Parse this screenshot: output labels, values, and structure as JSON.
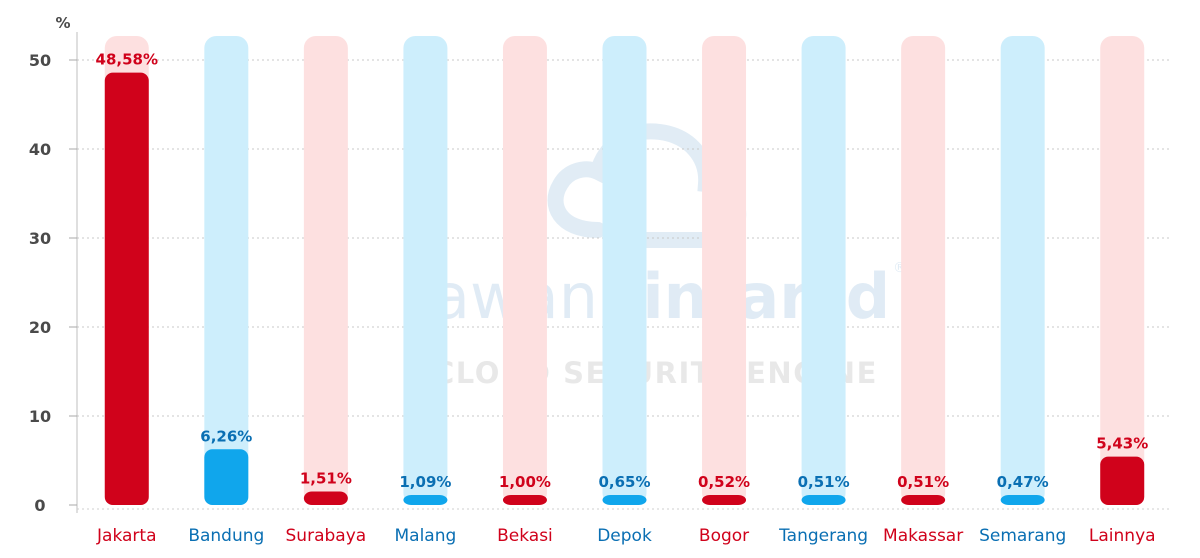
{
  "chart_data": {
    "type": "bar",
    "title": "",
    "xlabel": "",
    "ylabel": "%",
    "ylim": [
      0,
      50
    ],
    "yticks": [
      0,
      10,
      20,
      30,
      40,
      50
    ],
    "grid": true,
    "legend": "none",
    "categories": [
      "Jakarta",
      "Bandung",
      "Surabaya",
      "Malang",
      "Bekasi",
      "Depok",
      "Bogor",
      "Tangerang",
      "Makassar",
      "Semarang",
      "Lainnya"
    ],
    "values": [
      48.58,
      6.26,
      1.51,
      1.09,
      1.0,
      0.65,
      0.52,
      0.51,
      0.51,
      0.47,
      5.43
    ],
    "value_labels": [
      "48,58%",
      "6,26%",
      "1,51%",
      "1,09%",
      "1,00%",
      "0,65%",
      "0,52%",
      "0,51%",
      "0,51%",
      "0,47%",
      "5,43%"
    ],
    "colors": {
      "red": "#d0021b",
      "red_track": "#fde0e0",
      "blue": "#10a6ec",
      "blue_track": "#cdeefc",
      "blue_label": "#0a6fb3",
      "axis_text": "#4a4a4a"
    }
  },
  "watermark": {
    "brand_light": "awan",
    "brand_bold": "pintar.id",
    "registered": "®",
    "tagline": "CLOUD SECURITY ENGINE"
  }
}
